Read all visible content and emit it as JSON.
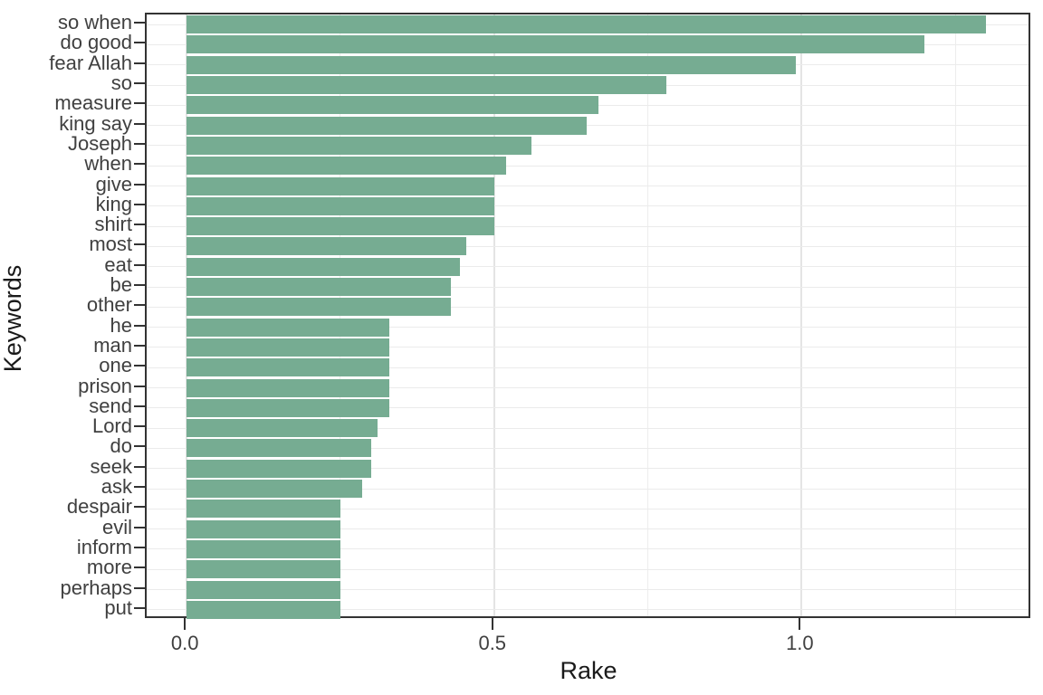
{
  "chart_data": {
    "type": "bar",
    "orientation": "horizontal",
    "title": "",
    "xlabel": "Rake",
    "ylabel": "Keywords",
    "categories": [
      "so when",
      "do good",
      "fear Allah",
      "so",
      "measure",
      "king say",
      "Joseph",
      "when",
      "give",
      "king",
      "shirt",
      "most",
      "eat",
      "be",
      "other",
      "he",
      "man",
      "one",
      "prison",
      "send",
      "Lord",
      "do",
      "seek",
      "ask",
      "despair",
      "evil",
      "inform",
      "more",
      "perhaps",
      "put"
    ],
    "values": [
      1.3,
      1.2,
      0.99,
      0.78,
      0.67,
      0.65,
      0.56,
      0.52,
      0.5,
      0.5,
      0.5,
      0.455,
      0.445,
      0.43,
      0.43,
      0.33,
      0.33,
      0.33,
      0.33,
      0.33,
      0.31,
      0.3,
      0.3,
      0.285,
      0.25,
      0.25,
      0.25,
      0.25,
      0.25,
      0.25
    ],
    "xlim": [
      -0.065,
      1.369
    ],
    "x_major_tick_labels": [
      "0.0",
      "0.5",
      "1.0"
    ],
    "x_major_tick_values": [
      0,
      0.5,
      1.0
    ],
    "x_minor_gridline_values": [
      0.25,
      0.75,
      1.25
    ],
    "grid": true,
    "legend_position": "none",
    "bar_color": "#76ac92",
    "gridline_color": "#ebebeb",
    "panel_border_color": "#333333",
    "axis_text_color": "#404040",
    "axis_title_color": "#1a1a1a",
    "background_color": "#ffffff"
  }
}
